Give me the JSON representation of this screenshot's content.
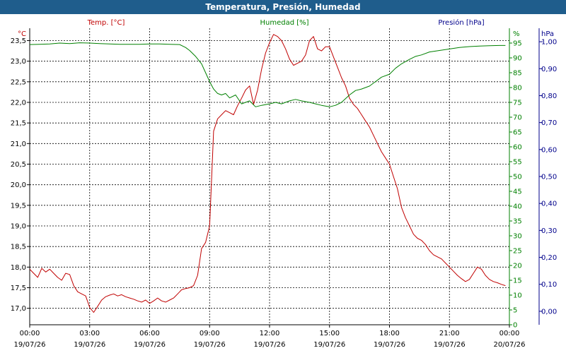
{
  "window_title": "Temperatura, Presión, Humedad",
  "colors": {
    "temp": "#c00000",
    "hum": "#008000",
    "pres": "#00008b",
    "title_bg": "#1f5d8c",
    "grid": "#000000"
  },
  "chart_data": {
    "type": "line",
    "title": "Temperatura, Presión, Humedad",
    "grid": true,
    "x_ticks": [
      {
        "time": "00:00",
        "date": "19/07/26"
      },
      {
        "time": "03:00",
        "date": "19/07/26"
      },
      {
        "time": "06:00",
        "date": "19/07/26"
      },
      {
        "time": "09:00",
        "date": "19/07/26"
      },
      {
        "time": "12:00",
        "date": "19/07/26"
      },
      {
        "time": "15:00",
        "date": "19/07/26"
      },
      {
        "time": "18:00",
        "date": "19/07/26"
      },
      {
        "time": "21:00",
        "date": "19/07/26"
      },
      {
        "time": "00:00",
        "date": "20/07/26"
      }
    ],
    "axes": {
      "temp": {
        "label": "Temp. [°C]",
        "unit": "°C",
        "ylim": [
          16.6,
          23.8
        ],
        "ticks": [
          "17,0",
          "17,5",
          "18,0",
          "18,5",
          "19,0",
          "19,5",
          "20,0",
          "20,5",
          "21,0",
          "21,5",
          "22,0",
          "22,5",
          "23,0",
          "23,5"
        ]
      },
      "hum": {
        "label": "Humedad [%]",
        "unit": "%",
        "ylim": [
          0,
          100
        ],
        "ticks": [
          "0",
          "5",
          "10",
          "15",
          "20",
          "25",
          "30",
          "35",
          "40",
          "45",
          "50",
          "55",
          "60",
          "65",
          "70",
          "75",
          "80",
          "85",
          "90",
          "95"
        ]
      },
      "pres": {
        "label": "Presión [hPa]",
        "unit": "hPa",
        "ylim": [
          -0.05,
          1.05
        ],
        "ticks": [
          "0,00",
          "0,10",
          "0,20",
          "0,30",
          "0,40",
          "0,50",
          "0,60",
          "0,70",
          "0,80",
          "0,90",
          "1,00"
        ]
      }
    },
    "series": [
      {
        "name": "Temp. [°C]",
        "axis": "temp",
        "x": [
          0,
          0.2,
          0.4,
          0.6,
          0.8,
          1.0,
          1.2,
          1.4,
          1.6,
          1.8,
          2.0,
          2.2,
          2.4,
          2.6,
          2.8,
          3.0,
          3.2,
          3.4,
          3.6,
          3.8,
          4.0,
          4.2,
          4.4,
          4.6,
          4.8,
          5.0,
          5.2,
          5.4,
          5.6,
          5.8,
          6.0,
          6.2,
          6.4,
          6.6,
          6.8,
          7.0,
          7.2,
          7.4,
          7.6,
          7.8,
          8.0,
          8.2,
          8.4,
          8.6,
          8.8,
          9.0,
          9.2,
          9.4,
          9.6,
          9.8,
          10.0,
          10.2,
          10.4,
          10.6,
          10.8,
          11.0,
          11.2,
          11.4,
          11.6,
          11.8,
          12.0,
          12.2,
          12.4,
          12.6,
          12.8,
          13.0,
          13.2,
          13.4,
          13.6,
          13.8,
          14.0,
          14.2,
          14.4,
          14.6,
          14.8,
          15.0,
          15.2,
          15.4,
          15.6,
          15.8,
          16.0,
          16.2,
          16.4,
          16.6,
          16.8,
          17.0,
          17.2,
          17.4,
          17.6,
          17.8,
          18.0,
          18.2,
          18.4,
          18.6,
          18.8,
          19.0,
          19.2,
          19.4,
          19.6,
          19.8,
          20.0,
          20.2,
          20.4,
          20.6,
          20.8,
          21.0,
          21.2,
          21.4,
          21.6,
          21.8,
          22.0,
          22.2,
          22.4,
          22.6,
          22.8,
          23.0,
          23.2,
          23.4,
          23.6,
          23.8
        ],
        "y": [
          17.95,
          17.85,
          17.75,
          17.97,
          17.88,
          17.95,
          17.85,
          17.75,
          17.68,
          17.85,
          17.82,
          17.55,
          17.4,
          17.35,
          17.3,
          17.02,
          16.9,
          17.05,
          17.2,
          17.28,
          17.32,
          17.35,
          17.3,
          17.33,
          17.28,
          17.25,
          17.22,
          17.18,
          17.15,
          17.2,
          17.12,
          17.18,
          17.25,
          17.18,
          17.15,
          17.2,
          17.25,
          17.35,
          17.45,
          17.48,
          17.5,
          17.55,
          17.8,
          18.45,
          18.6,
          19.0,
          21.3,
          21.6,
          21.7,
          21.8,
          21.75,
          21.7,
          21.92,
          22.1,
          22.3,
          22.4,
          21.95,
          22.3,
          22.8,
          23.2,
          23.45,
          23.65,
          23.6,
          23.5,
          23.3,
          23.05,
          22.9,
          22.95,
          23.0,
          23.15,
          23.5,
          23.6,
          23.3,
          23.25,
          23.35,
          23.35,
          23.1,
          22.85,
          22.6,
          22.4,
          22.1,
          21.95,
          21.85,
          21.7,
          21.55,
          21.4,
          21.2,
          21.0,
          20.8,
          20.65,
          20.5,
          20.2,
          19.9,
          19.45,
          19.2,
          19.0,
          18.8,
          18.7,
          18.65,
          18.55,
          18.4,
          18.3,
          18.25,
          18.2,
          18.1,
          18.0,
          17.9,
          17.8,
          17.72,
          17.65,
          17.7,
          17.85,
          18.0,
          17.95,
          17.8,
          17.7,
          17.65,
          17.62,
          17.58,
          17.55
        ],
        "color": "#c00000"
      },
      {
        "name": "Humedad [%]",
        "axis": "hum",
        "x": [
          0,
          0.5,
          1.0,
          1.5,
          2.0,
          2.5,
          3.0,
          3.5,
          4.0,
          4.5,
          5.0,
          5.5,
          6.0,
          6.5,
          7.0,
          7.5,
          7.8,
          8.0,
          8.3,
          8.6,
          8.8,
          9.0,
          9.2,
          9.4,
          9.6,
          9.8,
          10.0,
          10.3,
          10.6,
          11.0,
          11.3,
          11.6,
          12.0,
          12.3,
          12.6,
          13.0,
          13.3,
          13.6,
          14.0,
          14.3,
          14.6,
          15.0,
          15.3,
          15.6,
          16.0,
          16.3,
          16.6,
          17.0,
          17.3,
          17.6,
          18.0,
          18.3,
          18.6,
          19.0,
          19.3,
          19.6,
          20.0,
          20.5,
          21.0,
          21.5,
          22.0,
          22.5,
          23.0,
          23.5,
          23.8
        ],
        "y": [
          94.5,
          94.6,
          94.7,
          95.0,
          94.8,
          95.1,
          95.0,
          94.8,
          94.7,
          94.6,
          94.6,
          94.6,
          94.7,
          94.7,
          94.6,
          94.5,
          93.5,
          92.5,
          90.5,
          88.0,
          85.0,
          82.0,
          79.5,
          78.0,
          77.5,
          78.0,
          76.5,
          77.5,
          74.5,
          75.5,
          73.5,
          74.0,
          74.5,
          75.0,
          74.5,
          75.5,
          76.0,
          75.5,
          75.0,
          74.5,
          74.0,
          73.5,
          74.0,
          75.0,
          77.5,
          79.0,
          79.5,
          80.5,
          82.0,
          83.5,
          84.5,
          86.5,
          88.0,
          89.5,
          90.5,
          91.0,
          92.0,
          92.5,
          93.0,
          93.5,
          93.8,
          94.0,
          94.1,
          94.2,
          94.2
        ],
        "color": "#008000"
      }
    ]
  }
}
